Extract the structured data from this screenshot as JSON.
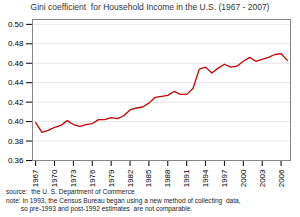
{
  "chart_data": {
    "type": "line",
    "title": "Gini coefficient  for Household Income in the U.S. (1967 - 2007)",
    "x": [
      1967,
      1968,
      1969,
      1970,
      1971,
      1972,
      1973,
      1974,
      1975,
      1976,
      1977,
      1978,
      1979,
      1980,
      1981,
      1982,
      1983,
      1984,
      1985,
      1986,
      1987,
      1988,
      1989,
      1990,
      1991,
      1992,
      1993,
      1994,
      1995,
      1996,
      1997,
      1998,
      1999,
      2000,
      2001,
      2002,
      2003,
      2004,
      2005,
      2006,
      2007
    ],
    "values": [
      0.399,
      0.389,
      0.391,
      0.394,
      0.396,
      0.401,
      0.397,
      0.395,
      0.397,
      0.398,
      0.402,
      0.402,
      0.404,
      0.403,
      0.406,
      0.412,
      0.414,
      0.415,
      0.419,
      0.425,
      0.426,
      0.427,
      0.431,
      0.428,
      0.428,
      0.434,
      0.454,
      0.456,
      0.45,
      0.455,
      0.459,
      0.456,
      0.457,
      0.462,
      0.466,
      0.462,
      0.464,
      0.466,
      0.469,
      0.47,
      0.463
    ],
    "color": "#cc0000",
    "xlim": [
      1966.5,
      2007.5
    ],
    "xticks": [
      1967,
      1970,
      1973,
      1976,
      1979,
      1982,
      1985,
      1988,
      1991,
      1994,
      1997,
      2000,
      2003,
      2006
    ],
    "ylim": [
      0.36,
      0.505
    ],
    "yticks": [
      0.36,
      0.38,
      {
        "value": 0.4,
        "label": "0.40"
      },
      0.42,
      0.44,
      0.46,
      0.48,
      {
        "value": 0.5,
        "label": "0.50"
      }
    ],
    "grid": true,
    "annotations": [
      "source:  the U. S. Department of Commerce",
      "note: In 1993, the Census Bureau began using a new method of collecting  data,",
      "        so pre-1993 and post-1992 estimates  are not comparable."
    ]
  }
}
